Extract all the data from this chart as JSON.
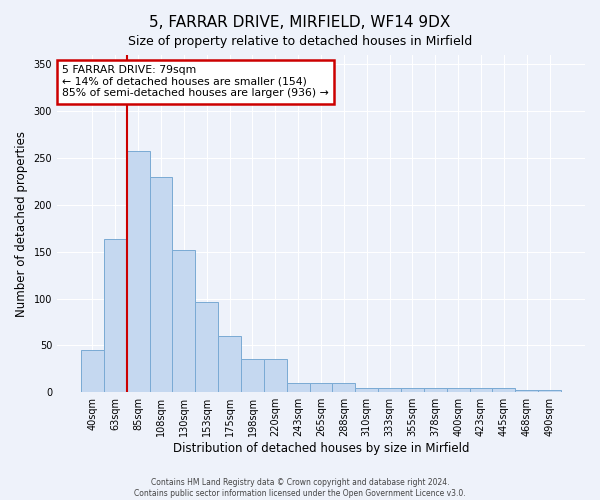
{
  "title": "5, FARRAR DRIVE, MIRFIELD, WF14 9DX",
  "subtitle": "Size of property relative to detached houses in Mirfield",
  "xlabel": "Distribution of detached houses by size in Mirfield",
  "ylabel": "Number of detached properties",
  "bar_labels": [
    "40sqm",
    "63sqm",
    "85sqm",
    "108sqm",
    "130sqm",
    "153sqm",
    "175sqm",
    "198sqm",
    "220sqm",
    "243sqm",
    "265sqm",
    "288sqm",
    "310sqm",
    "333sqm",
    "355sqm",
    "378sqm",
    "400sqm",
    "423sqm",
    "445sqm",
    "468sqm",
    "490sqm"
  ],
  "bar_values": [
    45,
    164,
    258,
    230,
    152,
    96,
    60,
    35,
    35,
    10,
    10,
    10,
    4,
    4,
    4,
    4,
    4,
    4,
    5,
    2,
    2
  ],
  "bar_color": "#c5d8f0",
  "bar_edge_color": "#7aaad4",
  "ylim": [
    0,
    360
  ],
  "yticks": [
    0,
    50,
    100,
    150,
    200,
    250,
    300,
    350
  ],
  "vline_x": 1.5,
  "vline_color": "#cc0000",
  "annotation_title": "5 FARRAR DRIVE: 79sqm",
  "annotation_line1": "← 14% of detached houses are smaller (154)",
  "annotation_line2": "85% of semi-detached houses are larger (936) →",
  "annotation_box_color": "#cc0000",
  "footer_line1": "Contains HM Land Registry data © Crown copyright and database right 2024.",
  "footer_line2": "Contains public sector information licensed under the Open Government Licence v3.0.",
  "background_color": "#eef2fa",
  "plot_bg_color": "#eef2fa",
  "grid_color": "#ffffff",
  "title_fontsize": 11,
  "subtitle_fontsize": 9
}
